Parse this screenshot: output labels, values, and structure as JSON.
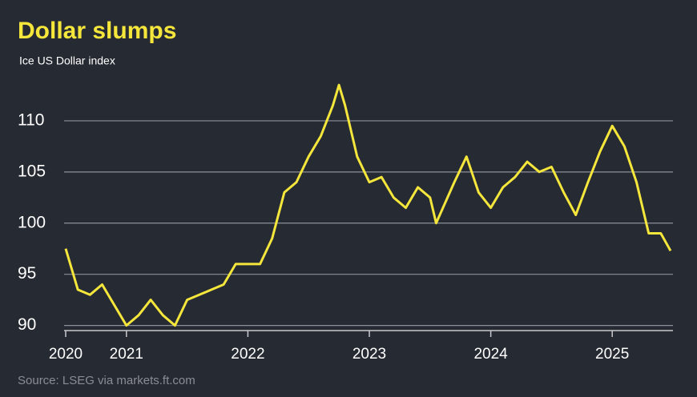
{
  "chart_data": {
    "type": "line",
    "title": "Dollar slumps",
    "subtitle": "Ice US Dollar index",
    "source": "Source: LSEG via markets.ft.com",
    "x": [
      2020.5,
      2020.6,
      2020.7,
      2020.8,
      2020.9,
      2021.0,
      2021.1,
      2021.2,
      2021.3,
      2021.4,
      2021.5,
      2021.6,
      2021.7,
      2021.8,
      2021.9,
      2022.0,
      2022.1,
      2022.2,
      2022.3,
      2022.4,
      2022.5,
      2022.6,
      2022.7,
      2022.75,
      2022.8,
      2022.9,
      2023.0,
      2023.1,
      2023.2,
      2023.3,
      2023.4,
      2023.5,
      2023.55,
      2023.7,
      2023.8,
      2023.9,
      2024.0,
      2024.1,
      2024.2,
      2024.3,
      2024.4,
      2024.5,
      2024.6,
      2024.7,
      2024.8,
      2024.9,
      2025.0,
      2025.1,
      2025.2,
      2025.3,
      2025.4,
      2025.48
    ],
    "series": [
      {
        "name": "Ice US Dollar index",
        "color": "#f5e63c",
        "values": [
          97.5,
          93.5,
          93.0,
          94.0,
          92.0,
          90.0,
          91.0,
          92.5,
          91.0,
          90.0,
          92.5,
          93.0,
          93.5,
          94.0,
          96.0,
          96.0,
          96.0,
          98.5,
          103.0,
          104.0,
          106.5,
          108.5,
          111.5,
          113.5,
          111.5,
          106.5,
          104.0,
          104.5,
          102.5,
          101.5,
          103.5,
          102.5,
          100.0,
          104.0,
          106.5,
          103.0,
          101.5,
          103.5,
          104.5,
          106.0,
          105.0,
          105.5,
          103.0,
          100.8,
          104.0,
          107.0,
          109.5,
          107.5,
          104.0,
          99.0,
          99.0,
          97.3
        ]
      }
    ],
    "xlim": [
      2020.5,
      2025.5
    ],
    "xticks": [
      {
        "value": 2020.5,
        "label": "2020"
      },
      2021,
      2022,
      2023,
      2024,
      2025
    ],
    "ylim": [
      89.5,
      115
    ],
    "yticks": [
      90,
      95,
      100,
      105,
      110
    ],
    "grid": true
  }
}
